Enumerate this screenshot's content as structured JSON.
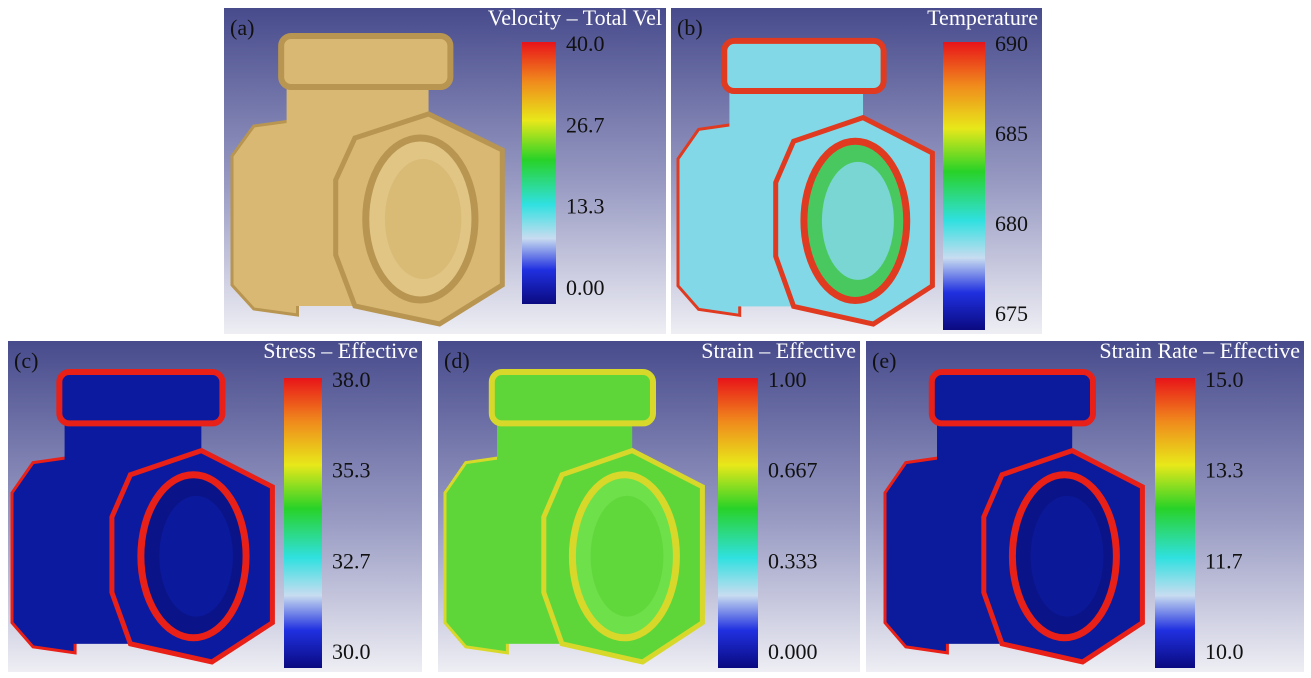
{
  "panels": [
    {
      "label": "(a)",
      "title": "Velocity – Total Vel",
      "ticks": [
        "40.0",
        "26.7",
        "13.3",
        "0.00"
      ]
    },
    {
      "label": "(b)",
      "title": "Temperature",
      "ticks": [
        "690",
        "685",
        "680",
        "675"
      ]
    },
    {
      "label": "(c)",
      "title": "Stress – Effective",
      "ticks": [
        "38.0",
        "35.3",
        "32.7",
        "30.0"
      ]
    },
    {
      "label": "(d)",
      "title": "Strain – Effective",
      "ticks": [
        "1.00",
        "0.667",
        "0.333",
        "0.000"
      ]
    },
    {
      "label": "(e)",
      "title": "Strain Rate – Effective",
      "ticks": [
        "15.0",
        "13.3",
        "11.7",
        "10.0"
      ]
    }
  ]
}
